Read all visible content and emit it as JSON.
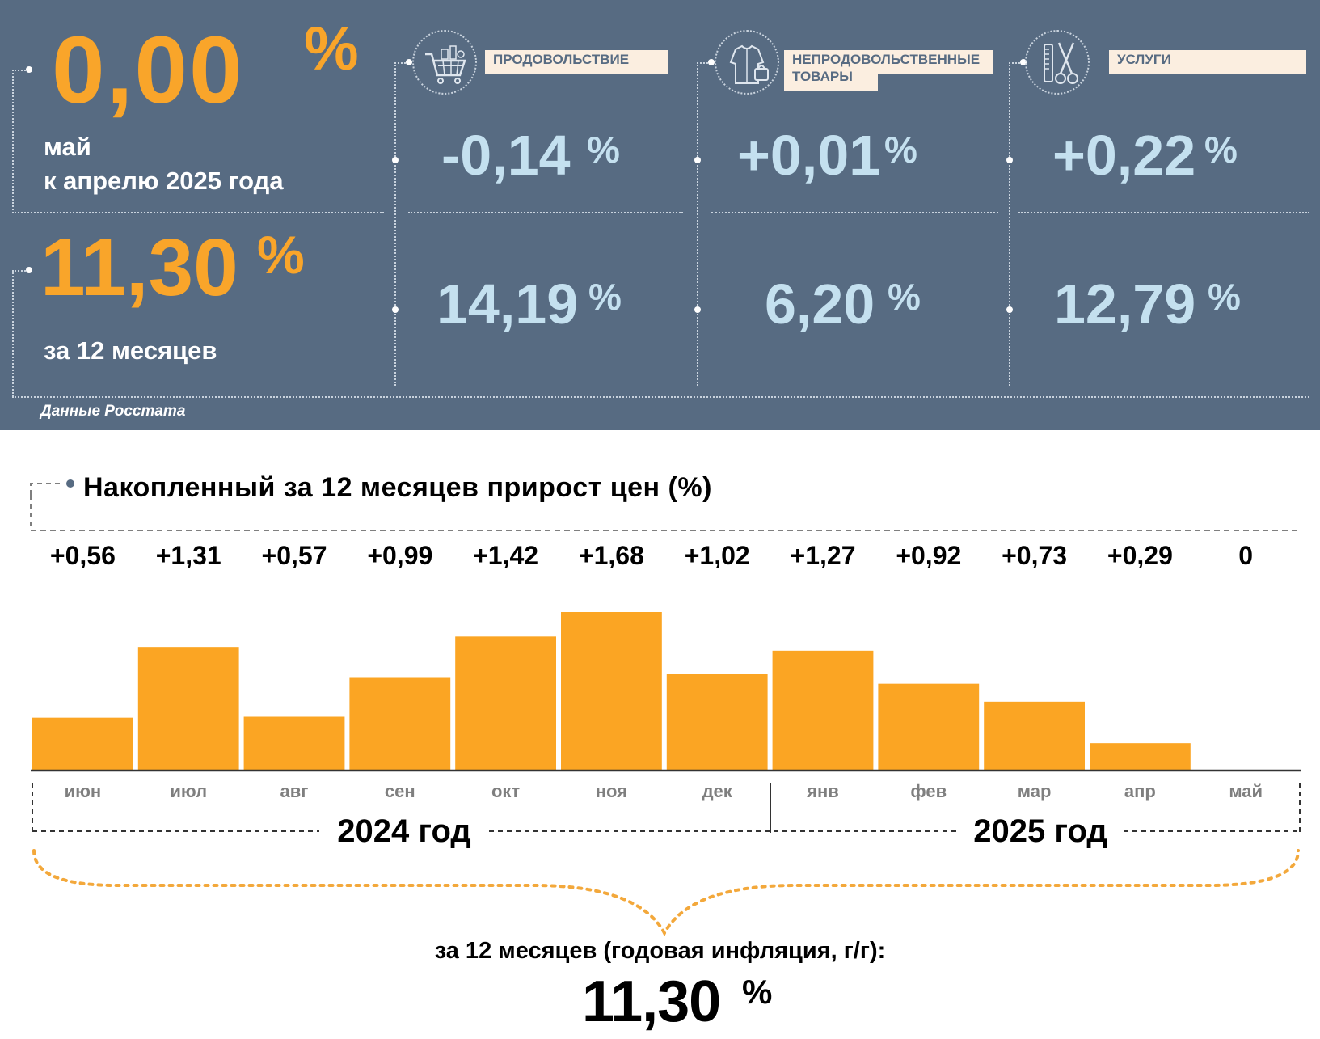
{
  "header": {
    "monthly": {
      "value": "0,00",
      "unit": "%",
      "line1": "май",
      "line2": "к апрелю 2025 года"
    },
    "annual": {
      "value": "11,30",
      "unit": "%",
      "label": "за 12 месяцев"
    },
    "source": "Данные Росстата"
  },
  "categories": [
    {
      "name": "ПРОДОВОЛЬСТВИЕ",
      "icon": "shopping-cart-icon",
      "monthly": "-0,14",
      "annual": "14,19",
      "unit": "%"
    },
    {
      "name": "НЕПРОДОВОЛЬСТВЕННЫЕ ТОВАРЫ",
      "name_line1": "НЕПРОДОВОЛЬСТВЕННЫЕ",
      "name_line2": "ТОВАРЫ",
      "icon": "clothes-icon",
      "monthly": "+0,01",
      "annual": "6,20",
      "unit": "%"
    },
    {
      "name": "УСЛУГИ",
      "icon": "scissors-comb-icon",
      "monthly": "+0,22",
      "annual": "12,79",
      "unit": "%"
    }
  ],
  "colors": {
    "panel": "#576b82",
    "accent_orange": "#f9a52a",
    "value_blue": "#c4e0ef",
    "category_box": "#fbeee0",
    "bar": "#fba523"
  },
  "chart_data": {
    "type": "bar",
    "title": "Накопленный за 12 месяцев прирост цен (%)",
    "categories": [
      "июн",
      "июл",
      "авг",
      "сен",
      "окт",
      "ноя",
      "дек",
      "янв",
      "фев",
      "мар",
      "апр",
      "май"
    ],
    "values": [
      0.56,
      1.31,
      0.57,
      0.99,
      1.42,
      1.68,
      1.02,
      1.27,
      0.92,
      0.73,
      0.29,
      0
    ],
    "value_labels": [
      "+0,56",
      "+1,31",
      "+0,57",
      "+0,99",
      "+1,42",
      "+1,68",
      "+1,02",
      "+1,27",
      "+0,92",
      "+0,73",
      "+0,29",
      "0"
    ],
    "ylim": [
      0,
      1.68
    ],
    "year_groups": [
      {
        "label": "2024 год",
        "months": [
          "июн",
          "июл",
          "авг",
          "сен",
          "окт",
          "ноя",
          "дек"
        ]
      },
      {
        "label": "2025 год",
        "months": [
          "янв",
          "фев",
          "мар",
          "апр",
          "май"
        ]
      }
    ],
    "grid": false,
    "summary_label": "за 12 месяцев (годовая инфляция, г/г):",
    "summary_value": "11,30",
    "summary_unit": "%"
  }
}
